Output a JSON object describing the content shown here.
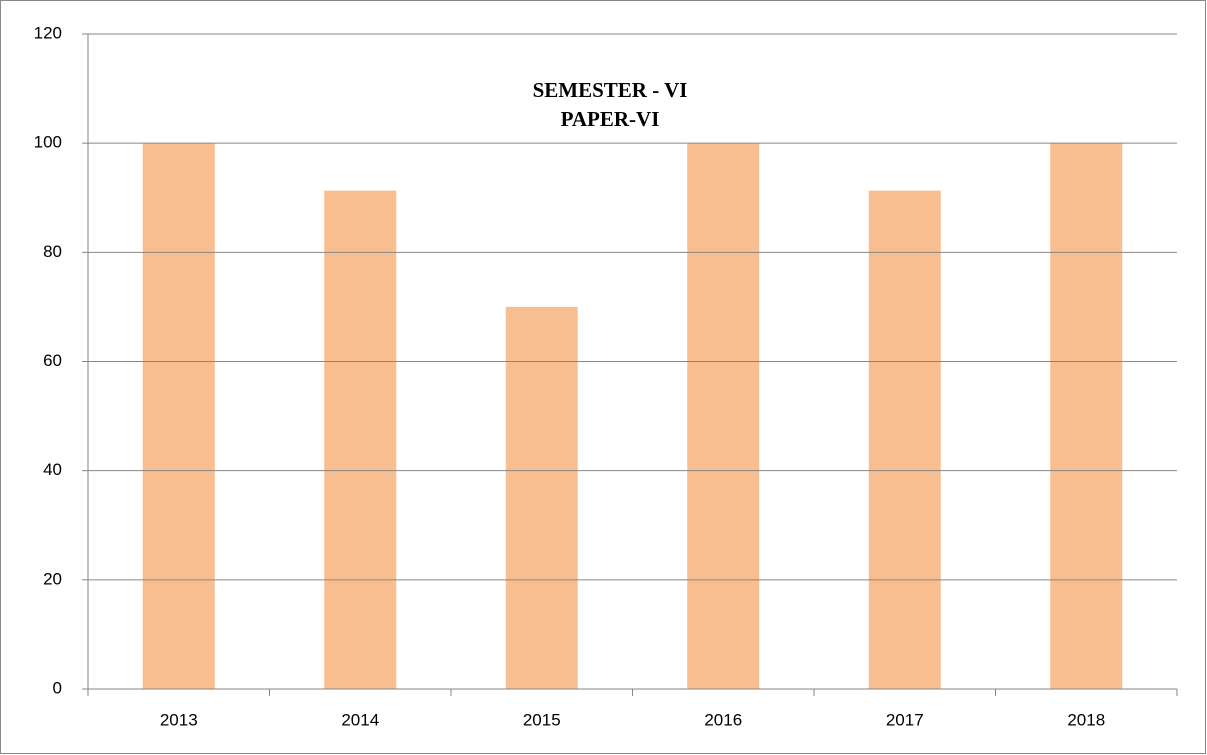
{
  "chart_data": {
    "type": "bar",
    "title": "SEMESTER - VI",
    "subtitle": "PAPER-VI",
    "categories": [
      "2013",
      "2014",
      "2015",
      "2016",
      "2017",
      "2018"
    ],
    "values": [
      100,
      91.3,
      70,
      100,
      91.3,
      100
    ],
    "color": "#f9be8f",
    "ylim": [
      0,
      120
    ],
    "yticks": [
      0,
      20,
      40,
      60,
      80,
      100,
      120
    ],
    "grid": true
  }
}
